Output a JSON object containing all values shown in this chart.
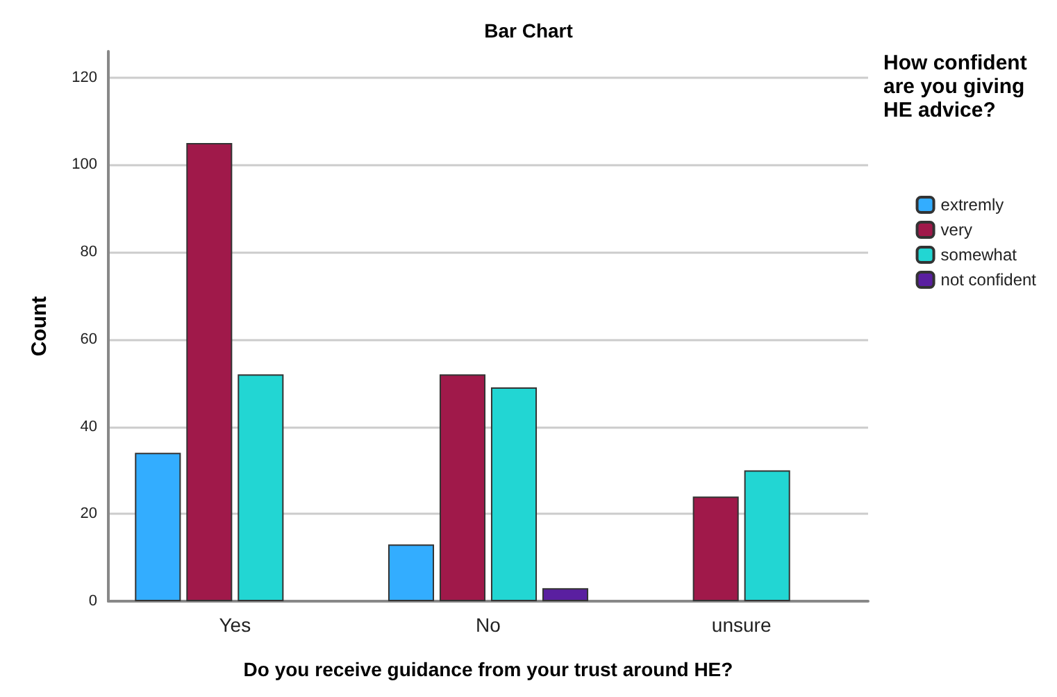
{
  "chart_data": {
    "type": "bar",
    "title": "Bar Chart",
    "xlabel": "Do you receive guidance from your trust around HE?",
    "ylabel": "Count",
    "legend_title": "How confident are you giving HE advice?",
    "categories": [
      "Yes",
      "No",
      "unsure"
    ],
    "series": [
      {
        "name": "extremly",
        "color": "#33adff",
        "values": [
          34,
          13,
          null
        ]
      },
      {
        "name": "very",
        "color": "#a0194a",
        "values": [
          105,
          52,
          24
        ]
      },
      {
        "name": "somewhat",
        "color": "#22d6d3",
        "values": [
          52,
          49,
          30
        ]
      },
      {
        "name": "not confident",
        "color": "#5a1fa0",
        "values": [
          null,
          3,
          null
        ]
      }
    ],
    "ylim": [
      0,
      126
    ],
    "yticks": [
      0,
      20,
      40,
      60,
      80,
      100,
      120
    ],
    "grid": "y",
    "legend": "right"
  }
}
